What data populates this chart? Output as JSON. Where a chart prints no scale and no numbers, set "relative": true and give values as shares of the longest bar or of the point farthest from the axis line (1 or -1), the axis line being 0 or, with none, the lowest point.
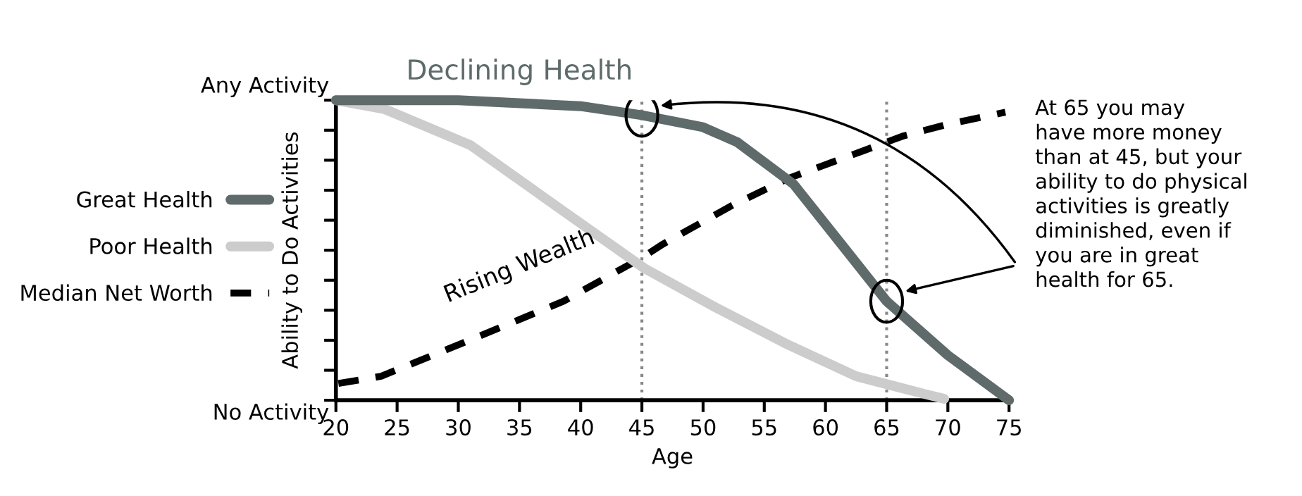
{
  "chart_data": {
    "type": "line",
    "xlabel": "Age",
    "ylabel": "Ability to Do Activities",
    "xlim": [
      20,
      75
    ],
    "xticks": [
      20,
      25,
      30,
      35,
      40,
      45,
      50,
      55,
      60,
      65,
      70,
      75
    ],
    "relative": true,
    "series": [
      {
        "name": "Great Health",
        "color": "#5f6b6b",
        "line_style": "solid",
        "x": [
          20,
          30,
          40,
          45,
          50,
          52.8,
          57.4,
          61.3,
          65,
          70,
          75
        ],
        "values": [
          1.0,
          1.0,
          0.98,
          0.95,
          0.91,
          0.86,
          0.72,
          0.52,
          0.33,
          0.15,
          0.0
        ]
      },
      {
        "name": "Poor Health",
        "color": "#cccccc",
        "line_style": "solid",
        "x": [
          20,
          24,
          31,
          38.6,
          45.2,
          51,
          56.7,
          62.5,
          68.2,
          69.7
        ],
        "values": [
          1.0,
          0.97,
          0.85,
          0.63,
          0.44,
          0.31,
          0.19,
          0.08,
          0.02,
          0.005
        ]
      },
      {
        "name": "Median Net Worth",
        "color": "#000000",
        "line_style": "dashed",
        "x": [
          20.2,
          23.7,
          30.9,
          38.6,
          45.2,
          46.7,
          52.4,
          57,
          63,
          66.3,
          70,
          74.7
        ],
        "values": [
          0.056,
          0.08,
          0.2,
          0.33,
          0.48,
          0.52,
          0.65,
          0.74,
          0.83,
          0.88,
          0.92,
          0.96
        ]
      }
    ],
    "ref_lines": [
      {
        "axis": "x",
        "value": 45,
        "color": "#888888",
        "line_style": "dotted"
      },
      {
        "axis": "x",
        "value": 65,
        "color": "#888888",
        "line_style": "dotted"
      }
    ],
    "annotations": [
      "Any Activity",
      "No Activity",
      {
        "text": "Declining Health",
        "x": 35,
        "y": 1.0
      },
      {
        "text": "Rising Wealth",
        "x": 35,
        "y": 0.26
      },
      "At 65 you may\nhave more money\nthan at 45, but your\nability to do physical\nactivities is greatly\ndiminished, even if\nyou are in great\nhealth for 65."
    ],
    "legend": "left",
    "grid": false,
    "marker": "none"
  }
}
